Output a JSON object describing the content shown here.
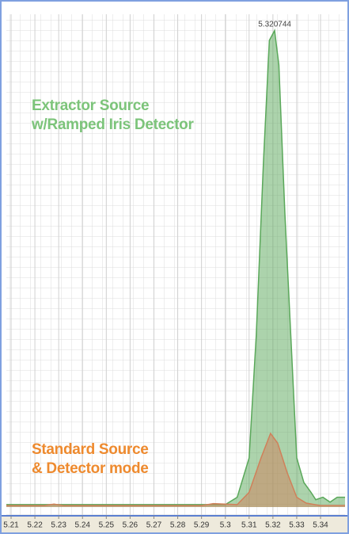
{
  "chart_data": {
    "type": "area",
    "x_label_color": "#333",
    "peak_x": 5.320744,
    "xlim": [
      5.208,
      5.3503
    ],
    "ylim": [
      0,
      100
    ],
    "xticks": [
      5.21,
      5.22,
      5.23,
      5.24,
      5.25,
      5.26,
      5.27,
      5.28,
      5.29,
      5.3,
      5.31,
      5.32,
      5.33,
      5.34
    ],
    "grid": true,
    "series": [
      {
        "name": "Extractor Source\nw/Ramped Iris Detector",
        "color": "#5aa85a",
        "text_color": "#7cc47a",
        "x": [
          5.208,
          5.25,
          5.29,
          5.3,
          5.305,
          5.31,
          5.313,
          5.316,
          5.3185,
          5.3207,
          5.3225,
          5.325,
          5.328,
          5.33,
          5.333,
          5.336,
          5.338,
          5.341,
          5.344,
          5.347,
          5.3503
        ],
        "values": [
          0.5,
          0.5,
          0.5,
          0.5,
          2,
          10,
          35,
          70,
          95,
          97,
          90,
          60,
          30,
          10,
          5,
          3,
          1.5,
          2,
          1,
          2,
          2
        ]
      },
      {
        "name": "Standard Source\n& Detector mode",
        "color": "#d0805a",
        "text_color": "#ee8a2e",
        "x": [
          5.208,
          5.224,
          5.228,
          5.232,
          5.25,
          5.29,
          5.295,
          5.305,
          5.31,
          5.315,
          5.319,
          5.322,
          5.326,
          5.33,
          5.334,
          5.34,
          5.3503
        ],
        "values": [
          0.3,
          0.3,
          0.6,
          0.3,
          0.3,
          0.3,
          0.7,
          0.5,
          3,
          10,
          15,
          13,
          7,
          2,
          0.8,
          0.3,
          0.3
        ]
      }
    ]
  }
}
